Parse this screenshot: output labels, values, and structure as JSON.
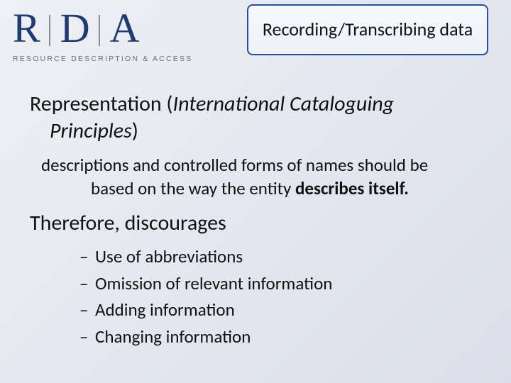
{
  "logo": {
    "letters": [
      "R",
      "D",
      "A"
    ],
    "tagline": "RESOURCE DESCRIPTION & ACCESS",
    "letter_color": "#1f3b6f",
    "separator_color": "#8a8f99",
    "tagline_color": "#6b7078"
  },
  "title_box": {
    "text": "Recording/Transcribing data",
    "border_color": "#2b4f9a",
    "bg_gradient_top": "#f6f8fc",
    "bg_gradient_bottom": "#eef1f8",
    "font_size_pt": 20
  },
  "body": {
    "heading_prefix": "Representation (",
    "heading_italic": "International Cataloguing Principles",
    "heading_suffix": ")",
    "description_line1": "descriptions and controlled forms of names should be",
    "description_line2_plain": "based on the way the entity ",
    "description_line2_bold": "describes itself.",
    "subheading": "Therefore, discourages",
    "bullets": [
      "Use of abbreviations",
      "Omission of relevant information",
      "Adding information",
      "Changing information"
    ],
    "bullet_marker": "–"
  },
  "slide": {
    "bg_gradient_from": "#eef0f5",
    "bg_gradient_to": "#dcdfe9",
    "text_color": "#111111",
    "heading_fontsize_pt": 22,
    "body_fontsize_pt": 19
  }
}
